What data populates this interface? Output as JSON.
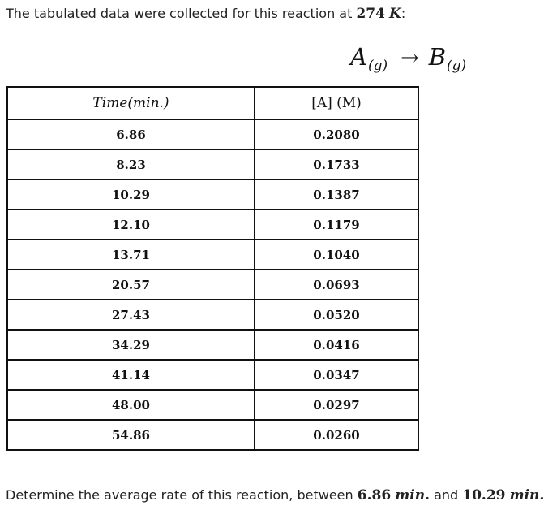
{
  "intro": {
    "text": "The tabulated data were collected for this reaction at ",
    "temperature": "274",
    "temperature_unit": "K",
    "suffix": ":"
  },
  "equation": {
    "reactant": "A",
    "reactant_phase": "(g)",
    "arrow": "→",
    "product": "B",
    "product_phase": "(g)"
  },
  "table": {
    "headers": [
      "Time(min.)",
      "[A] (M)"
    ],
    "rows": [
      [
        "6.86",
        "0.2080"
      ],
      [
        "8.23",
        "0.1733"
      ],
      [
        "10.29",
        "0.1387"
      ],
      [
        "12.10",
        "0.1179"
      ],
      [
        "13.71",
        "0.1040"
      ],
      [
        "20.57",
        "0.0693"
      ],
      [
        "27.43",
        "0.0520"
      ],
      [
        "34.29",
        "0.0416"
      ],
      [
        "41.14",
        "0.0347"
      ],
      [
        "48.00",
        "0.0297"
      ],
      [
        "54.86",
        "0.0260"
      ]
    ]
  },
  "question": {
    "text": "Determine the average rate of this reaction, between ",
    "t1_value": "6.86",
    "t1_unit": "min.",
    "conjunction": " and ",
    "t2_value": "10.29",
    "t2_unit": "min.",
    "suffix": ":"
  }
}
